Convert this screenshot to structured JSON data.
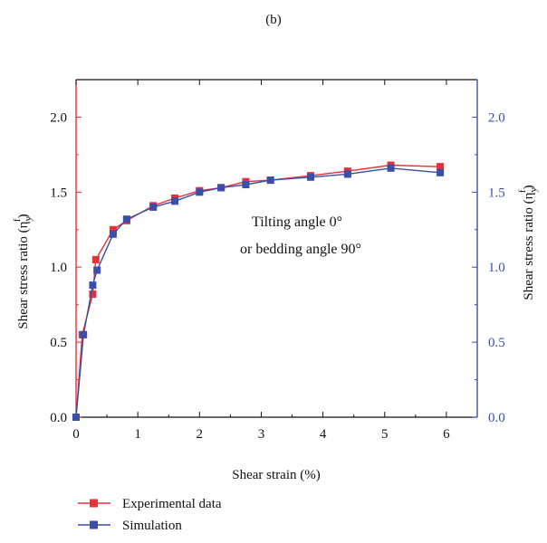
{
  "chart_data": {
    "type": "line",
    "panel_label": "(b)",
    "xlabel": "Shear strain (%)",
    "ylabel_left": "Shear stress ratio (η",
    "ylabel_right": "Shear stress ratio (η",
    "ylabel_sup": "f",
    "ylabel_sub": "y",
    "ylabel_close": ")",
    "xlim": [
      0,
      6.5
    ],
    "ylim": [
      0,
      2.25
    ],
    "x_ticks": [
      0,
      1,
      2,
      3,
      4,
      5,
      6
    ],
    "x_tick_labels": [
      "0",
      "1",
      "2",
      "3",
      "4",
      "5",
      "6"
    ],
    "y_ticks": [
      0,
      0.5,
      1.0,
      1.5,
      2.0
    ],
    "y_tick_labels": [
      "0.0",
      "0.5",
      "1.0",
      "1.5",
      "2.0"
    ],
    "annotation_line1": "Tilting angle 0°",
    "annotation_line2": "or bedding angle 90°",
    "grid": false,
    "legend_position": "bottom-left",
    "series": [
      {
        "name": "Experimental data",
        "color": "#e8303a",
        "x": [
          0,
          0.1,
          0.27,
          0.32,
          0.6,
          0.82,
          1.25,
          1.6,
          2.0,
          2.35,
          2.75,
          3.15,
          3.8,
          4.4,
          5.1,
          5.9
        ],
        "y": [
          0,
          0.55,
          0.82,
          1.05,
          1.25,
          1.31,
          1.41,
          1.46,
          1.51,
          1.53,
          1.57,
          1.58,
          1.61,
          1.64,
          1.68,
          1.67
        ]
      },
      {
        "name": "Simulation",
        "color": "#3a4fa8",
        "x": [
          0,
          0.12,
          0.27,
          0.34,
          0.6,
          0.82,
          1.25,
          1.6,
          2.0,
          2.35,
          2.75,
          3.15,
          3.8,
          4.4,
          5.1,
          5.9
        ],
        "y": [
          0,
          0.55,
          0.88,
          0.98,
          1.22,
          1.32,
          1.4,
          1.44,
          1.5,
          1.53,
          1.55,
          1.58,
          1.6,
          1.62,
          1.66,
          1.63
        ]
      }
    ],
    "axis_color_left": "#e8303a",
    "axis_color_right": "#3a4fa8",
    "axis_color_main": "#111111"
  }
}
